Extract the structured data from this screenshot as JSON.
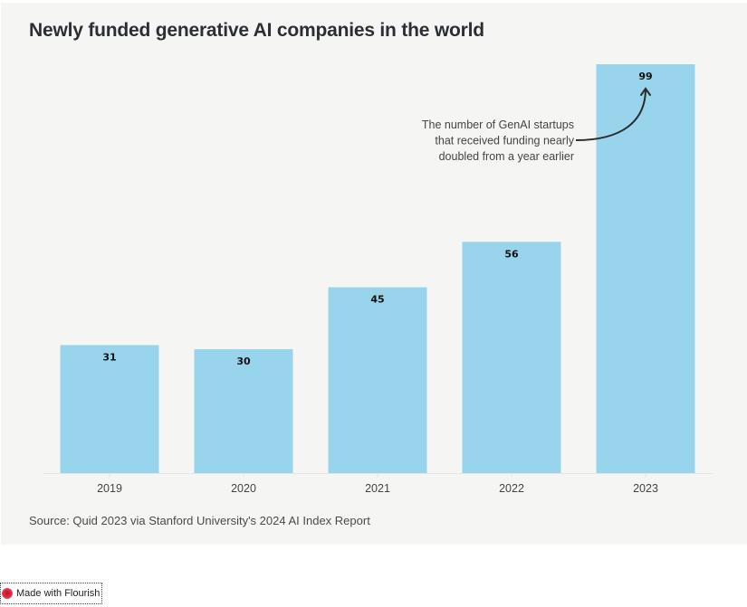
{
  "chart_data": {
    "type": "bar",
    "title": "Newly funded generative AI companies in the world",
    "categories": [
      "2019",
      "2020",
      "2021",
      "2022",
      "2023"
    ],
    "values": [
      31,
      30,
      45,
      56,
      99
    ],
    "data_labels": [
      "31",
      "30",
      "45",
      "56",
      "99"
    ],
    "xlabel": "",
    "ylabel": "",
    "ylim": [
      0,
      99
    ],
    "grid": false,
    "bar_color": "#98d5ed",
    "annotation": {
      "target_category": "2023",
      "lines": [
        "The number of GenAI startups",
        "that received funding nearly",
        "doubled from a year earlier"
      ]
    },
    "source": "Source: Quid 2023 via Stanford University's 2024 AI Index Report"
  },
  "footer": {
    "badge_label": "Made with Flourish"
  }
}
